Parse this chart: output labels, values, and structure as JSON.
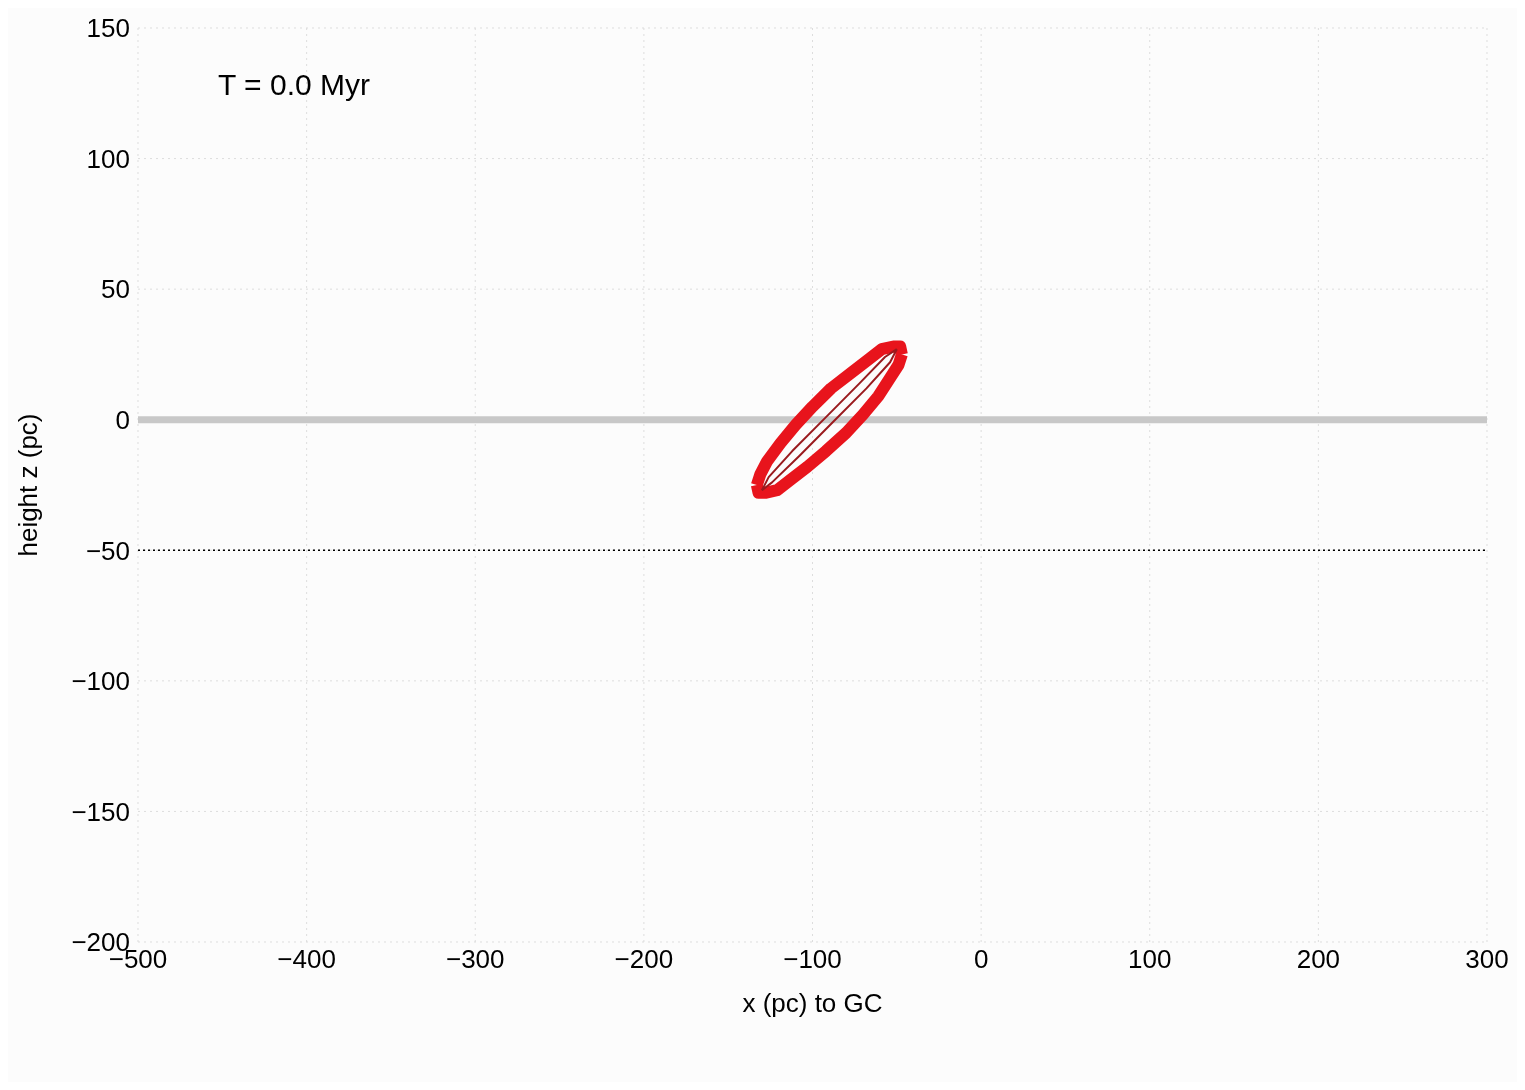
{
  "chart_data": {
    "type": "line",
    "xlabel": "x (pc) to GC",
    "ylabel": "height z (pc)",
    "annotations": [
      "T = 0.0 Myr"
    ],
    "xlim": [
      -500,
      300
    ],
    "xticks": [
      -500,
      -400,
      -300,
      -200,
      -100,
      0,
      100,
      200,
      300
    ],
    "ylim": [
      -200,
      150
    ],
    "yticks": [
      -200,
      -150,
      -100,
      -50,
      0,
      50,
      100,
      150
    ],
    "grid": true,
    "legend": false,
    "marker": "none",
    "line_style": "solid",
    "ref_lines": [
      {
        "axis": "y",
        "value": 0,
        "color": "#c8c8c8",
        "line_style": "solid"
      },
      {
        "axis": "y",
        "value": -50,
        "color": "#000000",
        "line_style": "dotted"
      }
    ],
    "series": [
      {
        "color": "#e8141c",
        "x": [
          -133,
          -132,
          -128,
          -121,
          -113,
          -103,
          -92,
          -80,
          -70,
          -61,
          -54,
          -49,
          -47
        ],
        "values": [
          -25,
          -28,
          -28,
          -27,
          -23,
          -18,
          -12,
          -5,
          2,
          9,
          16,
          21,
          25
        ]
      },
      {
        "color": "#e8141c",
        "x": [
          -133,
          -131,
          -127,
          -119,
          -110,
          -100,
          -89,
          -77,
          -67,
          -59,
          -52,
          -48,
          -47
        ],
        "values": [
          -25,
          -21,
          -16,
          -9,
          -2,
          5,
          12,
          18,
          23,
          27,
          28,
          28,
          25
        ]
      },
      {
        "color": "#9a1a1e",
        "x": [
          -130,
          -124,
          -108,
          -88,
          -68,
          -54,
          -50
        ],
        "values": [
          -27,
          -24,
          -14,
          -1,
          12,
          22,
          27
        ]
      },
      {
        "color": "#9a1a1e",
        "x": [
          -130,
          -126,
          -112,
          -92,
          -72,
          -57,
          -50
        ],
        "values": [
          -27,
          -22,
          -12,
          1,
          14,
          24,
          27
        ]
      }
    ]
  }
}
